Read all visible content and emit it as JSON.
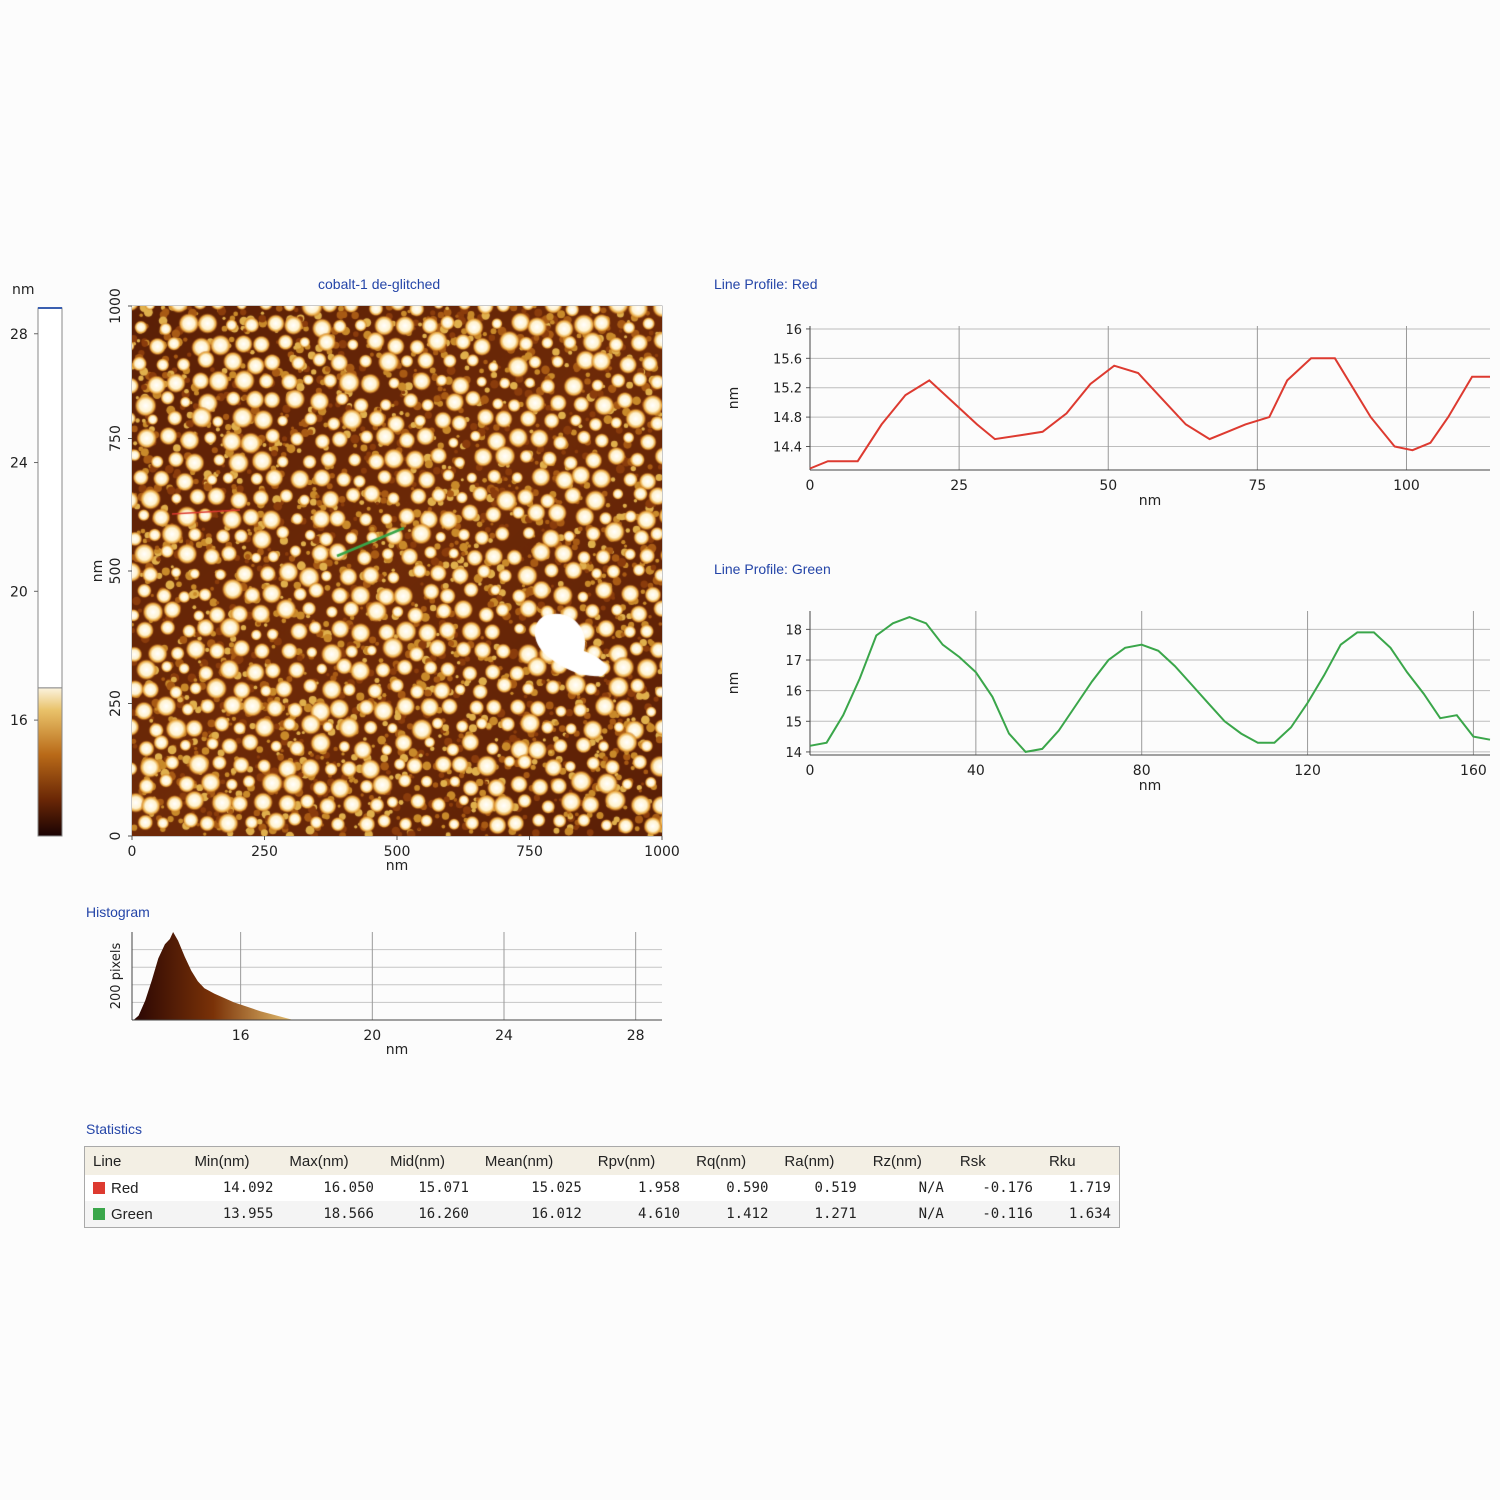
{
  "colors": {
    "red": "#dd3a30",
    "green": "#3aa64a",
    "title_blue": "#2445a8"
  },
  "colorbar": {
    "unit": "nm",
    "ticks": [
      "28",
      "24",
      "20",
      "16"
    ],
    "tick_values": [
      28,
      24,
      20,
      16
    ],
    "min": 12.4,
    "max": 28.8,
    "threshold": 17.0
  },
  "image": {
    "title": "cobalt-1 de-glitched",
    "xlabel": "nm",
    "ylabel": "nm",
    "x_ticks": [
      "0",
      "250",
      "500",
      "750",
      "1000"
    ],
    "y_ticks": [
      "0",
      "250",
      "500",
      "750",
      "1000"
    ],
    "x_values": [
      0,
      250,
      500,
      750,
      1000
    ],
    "y_values": [
      0,
      250,
      500,
      750,
      1000
    ]
  },
  "histogram": {
    "title": "Histogram",
    "ylabel": "200 pixels",
    "xlabel": "nm",
    "x_ticks": [
      "16",
      "20",
      "24",
      "28"
    ],
    "x_values": [
      16,
      20,
      24,
      28
    ],
    "xlim": [
      12.7,
      28.8
    ]
  },
  "chart_data": [
    {
      "type": "line",
      "title": "Line Profile: Red",
      "xlabel": "nm",
      "ylabel": "nm",
      "x_ticks": [
        "0",
        "25",
        "50",
        "75",
        "100"
      ],
      "y_ticks": [
        "16",
        "15.6",
        "15.2",
        "14.8",
        "14.4"
      ],
      "xlim": [
        0,
        114
      ],
      "ylim": [
        14.08,
        16.04
      ],
      "grid": true,
      "series": [
        {
          "color": "#dd3a30",
          "x": [
            0,
            3,
            8,
            12,
            16,
            20,
            24,
            28,
            31,
            35,
            39,
            43,
            47,
            51,
            55,
            59,
            63,
            67,
            70,
            73,
            77,
            80,
            84,
            88,
            91,
            94,
            98,
            101,
            104,
            107,
            111,
            114
          ],
          "y": [
            14.1,
            14.2,
            14.2,
            14.7,
            15.1,
            15.3,
            15.0,
            14.7,
            14.5,
            14.55,
            14.6,
            14.85,
            15.25,
            15.5,
            15.4,
            15.05,
            14.7,
            14.5,
            14.6,
            14.7,
            14.8,
            15.3,
            15.6,
            15.6,
            15.2,
            14.8,
            14.4,
            14.35,
            14.45,
            14.8,
            15.35,
            15.35
          ]
        }
      ]
    },
    {
      "type": "line",
      "title": "Line Profile: Green",
      "xlabel": "nm",
      "ylabel": "nm",
      "x_ticks": [
        "0",
        "40",
        "80",
        "120",
        "160"
      ],
      "y_ticks": [
        "18",
        "17",
        "16",
        "15",
        "14"
      ],
      "xlim": [
        0,
        164
      ],
      "ylim": [
        13.9,
        18.6
      ],
      "grid": true,
      "series": [
        {
          "color": "#3aa64a",
          "x": [
            0,
            4,
            8,
            12,
            16,
            20,
            24,
            28,
            32,
            36,
            40,
            44,
            48,
            52,
            56,
            60,
            64,
            68,
            72,
            76,
            80,
            84,
            88,
            92,
            96,
            100,
            104,
            108,
            112,
            116,
            120,
            124,
            128,
            132,
            136,
            140,
            144,
            148,
            152,
            156,
            160,
            164
          ],
          "y": [
            14.2,
            14.3,
            15.2,
            16.4,
            17.8,
            18.2,
            18.4,
            18.2,
            17.5,
            17.1,
            16.6,
            15.8,
            14.6,
            14.0,
            14.1,
            14.7,
            15.5,
            16.3,
            17.0,
            17.4,
            17.5,
            17.3,
            16.8,
            16.2,
            15.6,
            15.0,
            14.6,
            14.3,
            14.3,
            14.8,
            15.6,
            16.5,
            17.5,
            17.9,
            17.9,
            17.4,
            16.6,
            15.9,
            15.1,
            15.2,
            14.5,
            14.4
          ]
        }
      ]
    }
  ],
  "statistics": {
    "title": "Statistics",
    "headers": [
      "Line",
      "Min(nm)",
      "Max(nm)",
      "Mid(nm)",
      "Mean(nm)",
      "Rpv(nm)",
      "Rq(nm)",
      "Ra(nm)",
      "Rz(nm)",
      "Rsk",
      "Rku"
    ],
    "rows": [
      {
        "name": "Red",
        "color": "#dd3a30",
        "values": [
          "14.092",
          "16.050",
          "15.071",
          "15.025",
          "1.958",
          "0.590",
          "0.519",
          "N/A",
          "-0.176",
          "1.719"
        ]
      },
      {
        "name": "Green",
        "color": "#3aa64a",
        "values": [
          "13.955",
          "18.566",
          "16.260",
          "16.012",
          "4.610",
          "1.412",
          "1.271",
          "N/A",
          "-0.116",
          "1.634"
        ]
      }
    ]
  }
}
